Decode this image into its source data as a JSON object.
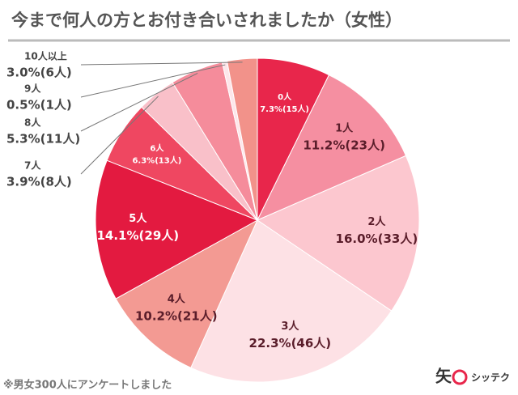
{
  "chart_data": {
    "type": "pie",
    "title": "今まで何人の方とお付き合いされましたか（女性）",
    "categories": [
      "0人",
      "1人",
      "2人",
      "3人",
      "4人",
      "5人",
      "6人",
      "7人",
      "8人",
      "9人",
      "10人以上"
    ],
    "values": [
      7.3,
      11.2,
      16.0,
      22.3,
      10.2,
      14.1,
      6.3,
      3.9,
      5.3,
      0.5,
      3.0
    ],
    "value_labels": [
      "7.3%(15人)",
      "11.2%(23人)",
      "16.0%(33人)",
      "22.3%(46人)",
      "10.2%(21人)",
      "14.1%(29人)",
      "6.3%(13人)",
      "3.9%(8人)",
      "5.3%(11人)",
      "0.5%(1人)",
      "3.0%(6人)"
    ],
    "colors": [
      "#e8264b",
      "#f58fa1",
      "#fcc7cf",
      "#fde1e5",
      "#f39a93",
      "#e31a40",
      "#ef4761",
      "#f9c0c9",
      "#f58c9b",
      "#fde6ea",
      "#f2928a"
    ],
    "note": "※男女300人にアンケートしました",
    "brand": "シッテク"
  }
}
